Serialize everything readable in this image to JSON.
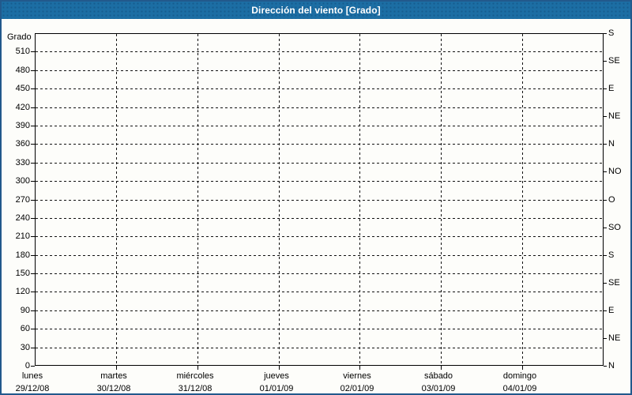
{
  "window": {
    "title": "Dirección del viento [Grado]"
  },
  "colors": {
    "titlebar": "#1c6ea4",
    "frame": "#22598c",
    "title_text": "#ffffff",
    "grid": "#111111",
    "axis": "#000000",
    "background": "#fdfdfa"
  },
  "chart_data": {
    "type": "line",
    "title": "Dirección del viento [Grado]",
    "ylabel": "Grado",
    "xlabel": "",
    "ylim": [
      0,
      540
    ],
    "grid": true,
    "legend": "none",
    "series": [],
    "note": "no data series plotted - empty chart grid",
    "y_left_ticks": [
      0,
      30,
      60,
      90,
      120,
      150,
      180,
      210,
      240,
      270,
      300,
      330,
      360,
      390,
      420,
      450,
      480,
      510
    ],
    "y_right_ticks": [
      {
        "value": 540,
        "label": "S"
      },
      {
        "value": 495,
        "label": "SE"
      },
      {
        "value": 450,
        "label": "E"
      },
      {
        "value": 405,
        "label": "NE"
      },
      {
        "value": 360,
        "label": "N"
      },
      {
        "value": 315,
        "label": "NO"
      },
      {
        "value": 270,
        "label": "O"
      },
      {
        "value": 225,
        "label": "SO"
      },
      {
        "value": 180,
        "label": "S"
      },
      {
        "value": 135,
        "label": "SE"
      },
      {
        "value": 90,
        "label": "E"
      },
      {
        "value": 45,
        "label": "NE"
      },
      {
        "value": 0,
        "label": "N"
      }
    ],
    "x_categories": [
      {
        "weekday": "lunes",
        "date": "29/12/08"
      },
      {
        "weekday": "martes",
        "date": "30/12/08"
      },
      {
        "weekday": "miércoles",
        "date": "31/12/08"
      },
      {
        "weekday": "jueves",
        "date": "01/01/09"
      },
      {
        "weekday": "viernes",
        "date": "02/01/09"
      },
      {
        "weekday": "sábado",
        "date": "03/01/09"
      },
      {
        "weekday": "domingo",
        "date": "04/01/09"
      }
    ]
  }
}
